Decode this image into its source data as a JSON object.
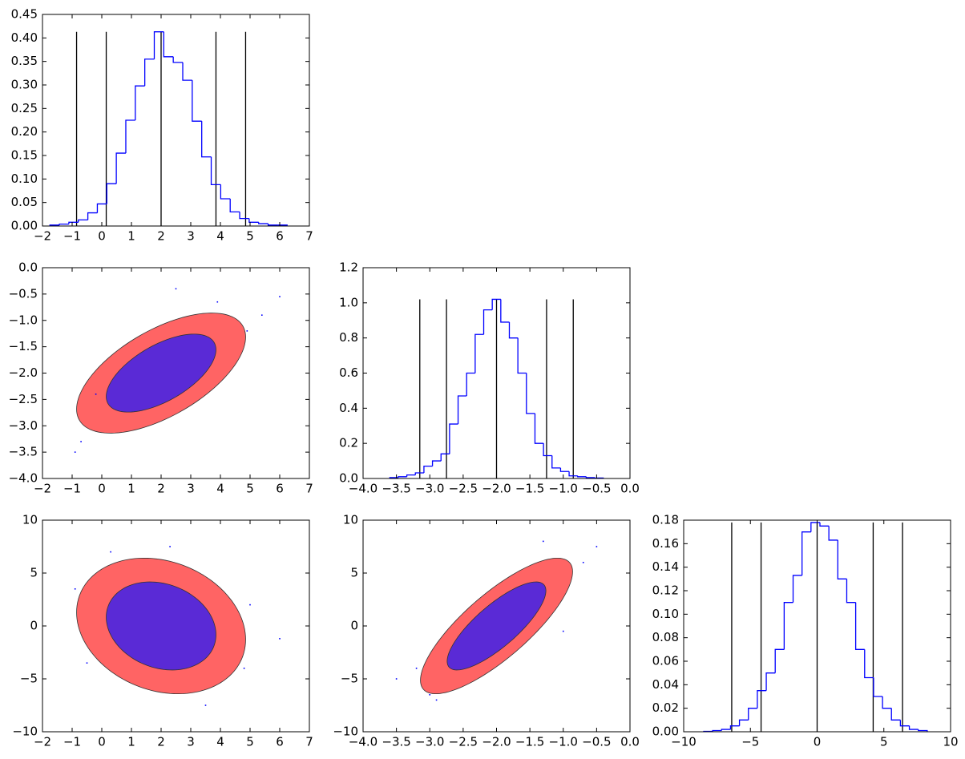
{
  "chart_data": [
    {
      "type": "histogram",
      "color": "#0000ff",
      "line_color": "#000000",
      "bins": [
        -1.75,
        -1.43,
        -1.11,
        -0.79,
        -0.47,
        -0.15,
        0.17,
        0.49,
        0.81,
        1.13,
        1.45,
        1.77,
        2.09,
        2.41,
        2.73,
        3.05,
        3.37,
        3.69,
        4.01,
        4.33,
        4.65,
        4.97,
        5.29,
        5.61,
        5.93,
        6.25
      ],
      "values": [
        0.002,
        0.004,
        0.008,
        0.013,
        0.028,
        0.047,
        0.09,
        0.155,
        0.225,
        0.298,
        0.355,
        0.413,
        0.36,
        0.348,
        0.31,
        0.223,
        0.147,
        0.088,
        0.058,
        0.03,
        0.016,
        0.008,
        0.005,
        0.002,
        0.002
      ],
      "vlines": [
        -0.85,
        0.15,
        2,
        3.85,
        4.85
      ],
      "xlim": [
        -2,
        7
      ],
      "xticks": [
        {
          "value": -2,
          "label": "−2"
        },
        {
          "value": -1,
          "label": "−1"
        },
        0,
        1,
        2,
        3,
        4,
        5,
        6,
        7
      ],
      "ylim": [
        0,
        0.45
      ],
      "yticks": [
        {
          "value": 0,
          "label": "0.00"
        },
        0.05,
        {
          "value": 0.1,
          "label": "0.10"
        },
        0.15,
        {
          "value": 0.2,
          "label": "0.20"
        },
        0.25,
        {
          "value": 0.3,
          "label": "0.30"
        },
        0.35,
        {
          "value": 0.4,
          "label": "0.40"
        },
        0.45
      ]
    },
    {
      "type": "scatter",
      "color": "#0000ff",
      "fill_colors": [
        "#ff6464",
        "#5a2ad6"
      ],
      "center": [
        2,
        -2
      ],
      "sigma": [
        1,
        0.4
      ],
      "rho": 0.6,
      "levels": [
        2.85,
        1.85
      ],
      "x": [
        -0.9,
        -0.7,
        4.9,
        5.4,
        6.0,
        2.5,
        -0.2,
        3.9
      ],
      "y": [
        -3.5,
        -3.3,
        -1.2,
        -0.9,
        -0.55,
        -0.4,
        -2.4,
        -0.65
      ],
      "xlim": [
        -2,
        7
      ],
      "xticks": [
        {
          "value": -2,
          "label": "−2"
        },
        {
          "value": -1,
          "label": "−1"
        },
        0,
        1,
        2,
        3,
        4,
        5,
        6,
        7
      ],
      "ylim": [
        -4,
        0
      ],
      "yticks": [
        {
          "value": -4,
          "label": "−4.0"
        },
        {
          "value": -3.5,
          "label": "−3.5"
        },
        {
          "value": -3,
          "label": "−3.0"
        },
        {
          "value": -2.5,
          "label": "−2.5"
        },
        {
          "value": -2,
          "label": "−2.0"
        },
        {
          "value": -1.5,
          "label": "−1.5"
        },
        {
          "value": -1,
          "label": "−1.0"
        },
        {
          "value": -0.5,
          "label": "−0.5"
        },
        {
          "value": 0,
          "label": "0.0"
        }
      ]
    },
    {
      "type": "histogram",
      "color": "#0000ff",
      "line_color": "#000000",
      "bins": [
        -3.6,
        -3.472,
        -3.344,
        -3.216,
        -3.088,
        -2.96,
        -2.832,
        -2.704,
        -2.576,
        -2.448,
        -2.32,
        -2.192,
        -2.064,
        -1.936,
        -1.808,
        -1.68,
        -1.552,
        -1.424,
        -1.296,
        -1.168,
        -1.04,
        -0.912,
        -0.784,
        -0.656,
        -0.528,
        -0.4
      ],
      "values": [
        0.005,
        0.01,
        0.02,
        0.032,
        0.07,
        0.1,
        0.14,
        0.31,
        0.47,
        0.6,
        0.82,
        0.96,
        1.02,
        0.89,
        0.8,
        0.6,
        0.37,
        0.2,
        0.13,
        0.06,
        0.04,
        0.015,
        0.01,
        0.005,
        0.003
      ],
      "vlines": [
        -3.15,
        -2.75,
        -2,
        -1.25,
        -0.85
      ],
      "xlim": [
        -4,
        0
      ],
      "xticks": [
        {
          "value": -4,
          "label": "−4.0"
        },
        {
          "value": -3.5,
          "label": "−3.5"
        },
        {
          "value": -3,
          "label": "−3.0"
        },
        {
          "value": -2.5,
          "label": "−2.5"
        },
        {
          "value": -2,
          "label": "−2.0"
        },
        {
          "value": -1.5,
          "label": "−1.5"
        },
        {
          "value": -1,
          "label": "−1.0"
        },
        {
          "value": -0.5,
          "label": "−0.5"
        },
        {
          "value": 0,
          "label": "0.0"
        }
      ],
      "ylim": [
        0,
        1.2
      ],
      "yticks": [
        {
          "value": 0,
          "label": "0.0"
        },
        0.2,
        0.4,
        0.6,
        0.8,
        {
          "value": 1,
          "label": "1.0"
        },
        1.2
      ]
    },
    {
      "type": "scatter",
      "color": "#0000ff",
      "fill_colors": [
        "#ff6464",
        "#5a2ad6"
      ],
      "center": [
        2,
        0
      ],
      "sigma": [
        1,
        2.25
      ],
      "rho": -0.2,
      "levels": [
        2.85,
        1.85
      ],
      "x": [
        -0.9,
        6.0,
        4.8,
        -0.5,
        2.3,
        5.0,
        0.3,
        3.5
      ],
      "y": [
        3.5,
        -1.2,
        -4.0,
        -3.5,
        7.5,
        2.0,
        7.0,
        -7.5
      ],
      "xlim": [
        -2,
        7
      ],
      "xticks": [
        {
          "value": -2,
          "label": "−2"
        },
        {
          "value": -1,
          "label": "−1"
        },
        0,
        1,
        2,
        3,
        4,
        5,
        6,
        7
      ],
      "ylim": [
        -10,
        10
      ],
      "yticks": [
        {
          "value": -10,
          "label": "−10"
        },
        {
          "value": -5,
          "label": "−5"
        },
        0,
        5,
        10
      ]
    },
    {
      "type": "scatter",
      "color": "#0000ff",
      "fill_colors": [
        "#ff6464",
        "#5a2ad6"
      ],
      "center": [
        -2,
        0
      ],
      "sigma": [
        0.4,
        2.25
      ],
      "rho": 0.8,
      "levels": [
        2.85,
        1.85
      ],
      "x": [
        -3.5,
        -3.2,
        -0.7,
        -0.5,
        -2.9,
        -1.0,
        -3.0,
        -1.3
      ],
      "y": [
        -5,
        -4,
        6,
        7.5,
        -7,
        -0.5,
        -6.5,
        8
      ],
      "xlim": [
        -4,
        0
      ],
      "xticks": [
        {
          "value": -4,
          "label": "−4.0"
        },
        {
          "value": -3.5,
          "label": "−3.5"
        },
        {
          "value": -3,
          "label": "−3.0"
        },
        {
          "value": -2.5,
          "label": "−2.5"
        },
        {
          "value": -2,
          "label": "−2.0"
        },
        {
          "value": -1.5,
          "label": "−1.5"
        },
        {
          "value": -1,
          "label": "−1.0"
        },
        {
          "value": -0.5,
          "label": "−0.5"
        },
        {
          "value": 0,
          "label": "0.0"
        }
      ],
      "ylim": [
        -10,
        10
      ],
      "yticks": [
        {
          "value": -10,
          "label": "−10"
        },
        {
          "value": -5,
          "label": "−5"
        },
        0,
        5,
        10
      ]
    },
    {
      "type": "histogram",
      "color": "#0000ff",
      "line_color": "#000000",
      "bins": [
        -8.5,
        -7.83,
        -7.16,
        -6.49,
        -5.82,
        -5.15,
        -4.48,
        -3.81,
        -3.14,
        -2.47,
        -1.8,
        -1.13,
        -0.46,
        0.21,
        0.88,
        1.55,
        2.22,
        2.89,
        3.56,
        4.23,
        4.9,
        5.57,
        6.24,
        6.91,
        7.58,
        8.25
      ],
      "values": [
        0.0003,
        0.001,
        0.002,
        0.005,
        0.01,
        0.02,
        0.035,
        0.05,
        0.07,
        0.11,
        0.133,
        0.17,
        0.178,
        0.175,
        0.163,
        0.13,
        0.11,
        0.07,
        0.046,
        0.03,
        0.02,
        0.01,
        0.005,
        0.002,
        0.001
      ],
      "vlines": [
        -6.4,
        -4.2,
        0,
        4.2,
        6.4
      ],
      "xlim": [
        -10,
        10
      ],
      "xticks": [
        {
          "value": -10,
          "label": "−10"
        },
        {
          "value": -5,
          "label": "−5"
        },
        0,
        5,
        10
      ],
      "ylim": [
        0,
        0.18
      ],
      "yticks": [
        {
          "value": 0,
          "label": "0.00"
        },
        0.02,
        0.04,
        0.06,
        0.08,
        {
          "value": 0.1,
          "label": "0.10"
        },
        0.12,
        0.14,
        0.16,
        0.18
      ]
    }
  ]
}
